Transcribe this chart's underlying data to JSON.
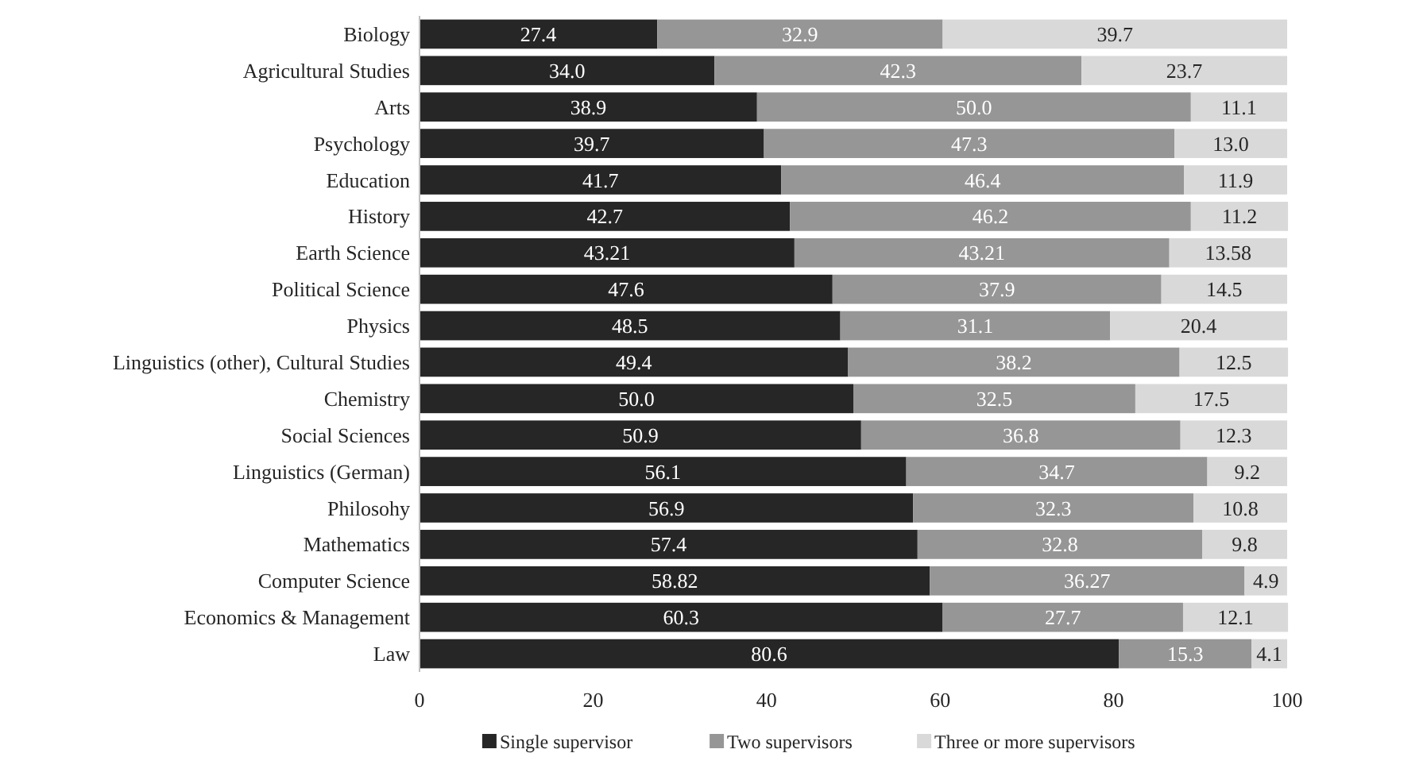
{
  "chart_data": {
    "type": "bar",
    "orientation": "horizontal",
    "stacked": true,
    "legend": "bottom",
    "grid": false,
    "categories": [
      "Biology",
      "Agricultural Studies",
      "Arts",
      "Psychology",
      "Education",
      "History",
      "Earth Science",
      "Political Science",
      "Physics",
      "Linguistics (other), Cultural Studies",
      "Chemistry",
      "Social Sciences",
      "Linguistics (German)",
      "Philosohy",
      "Mathematics",
      "Computer Science",
      "Economics & Management",
      "Law"
    ],
    "xlim": [
      0,
      100
    ],
    "xticks": [
      0,
      20,
      40,
      60,
      80,
      100
    ],
    "series": [
      {
        "name": "Single supervisor",
        "color": "#262626",
        "values": [
          27.4,
          34.0,
          38.9,
          39.7,
          41.7,
          42.7,
          43.21,
          47.6,
          48.5,
          49.4,
          50.0,
          50.9,
          56.1,
          56.9,
          57.4,
          58.82,
          60.3,
          80.6
        ],
        "value_labels": [
          "27.4",
          "34.0",
          "38.9",
          "39.7",
          "41.7",
          "42.7",
          "43.21",
          "47.6",
          "48.5",
          "49.4",
          "50.0",
          "50.9",
          "56.1",
          "56.9",
          "57.4",
          "58.82",
          "60.3",
          "80.6"
        ]
      },
      {
        "name": "Two supervisors",
        "color": "#969696",
        "values": [
          32.9,
          42.3,
          50.0,
          47.3,
          46.4,
          46.2,
          43.21,
          37.9,
          31.1,
          38.2,
          32.5,
          36.8,
          34.7,
          32.3,
          32.8,
          36.27,
          27.7,
          15.3
        ],
        "value_labels": [
          "32.9",
          "42.3",
          "50.0",
          "47.3",
          "46.4",
          "46.2",
          "43.21",
          "37.9",
          "31.1",
          "38.2",
          "32.5",
          "36.8",
          "34.7",
          "32.3",
          "32.8",
          "36.27",
          "27.7",
          "15.3"
        ]
      },
      {
        "name": "Three or more supervisors",
        "color": "#d9d9d9",
        "values": [
          39.7,
          23.7,
          11.1,
          13.0,
          11.9,
          11.2,
          13.58,
          14.5,
          20.4,
          12.5,
          17.5,
          12.3,
          9.2,
          10.8,
          9.8,
          4.9,
          12.1,
          4.1
        ],
        "value_labels": [
          "39.7",
          "23.7",
          "11.1",
          "13.0",
          "11.9",
          "11.2",
          "13.58",
          "14.5",
          "20.4",
          "12.5",
          "17.5",
          "12.3",
          "9.2",
          "10.8",
          "9.8",
          "4.9",
          "12.1",
          "4.1"
        ]
      }
    ]
  }
}
